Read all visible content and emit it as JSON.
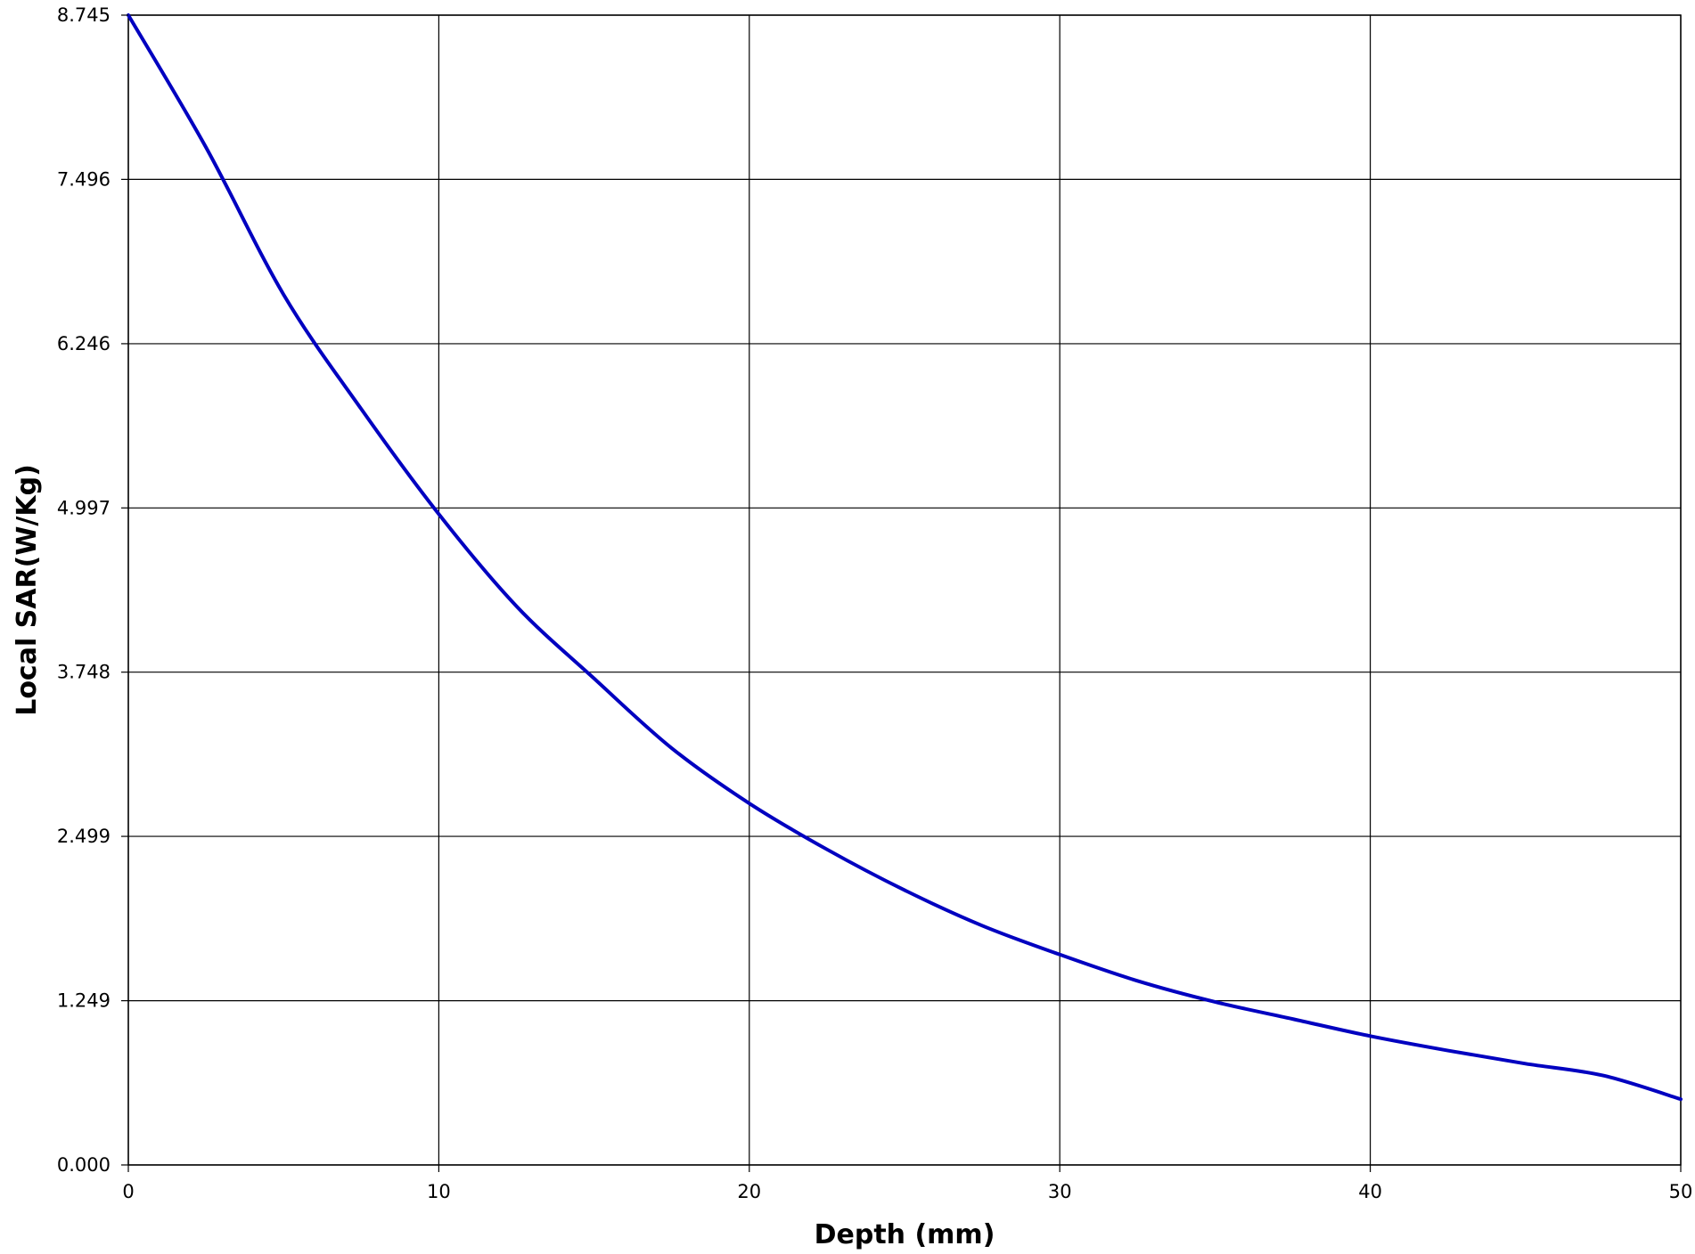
{
  "chart_data": {
    "type": "line",
    "title": "",
    "xlabel": "Depth (mm)",
    "ylabel": "Local SAR(W/Kg)",
    "xlim": [
      0,
      50
    ],
    "ylim": [
      0,
      8.745
    ],
    "x_ticks": [
      0,
      10,
      20,
      30,
      40,
      50
    ],
    "x_tick_labels": [
      "0",
      "10",
      "20",
      "30",
      "40",
      "50"
    ],
    "y_ticks": [
      0,
      1.249,
      2.499,
      3.748,
      4.997,
      6.246,
      7.496,
      8.745
    ],
    "y_tick_labels": [
      "0.000",
      "1.249",
      "2.499",
      "3.748",
      "4.997",
      "6.246",
      "7.496",
      "8.745"
    ],
    "grid": true,
    "legend": "none",
    "series": [
      {
        "color": "#0000c0",
        "x": [
          0,
          2.5,
          5,
          7.5,
          10,
          12.5,
          15,
          17.5,
          20,
          22.5,
          25,
          27.5,
          30,
          32.5,
          35,
          37.5,
          40,
          42.5,
          45,
          47.5,
          50
        ],
        "y": [
          8.745,
          7.74,
          6.62,
          5.75,
          4.95,
          4.25,
          3.7,
          3.17,
          2.75,
          2.4,
          2.09,
          1.82,
          1.6,
          1.4,
          1.24,
          1.11,
          0.98,
          0.87,
          0.77,
          0.68,
          0.5
        ]
      }
    ]
  }
}
